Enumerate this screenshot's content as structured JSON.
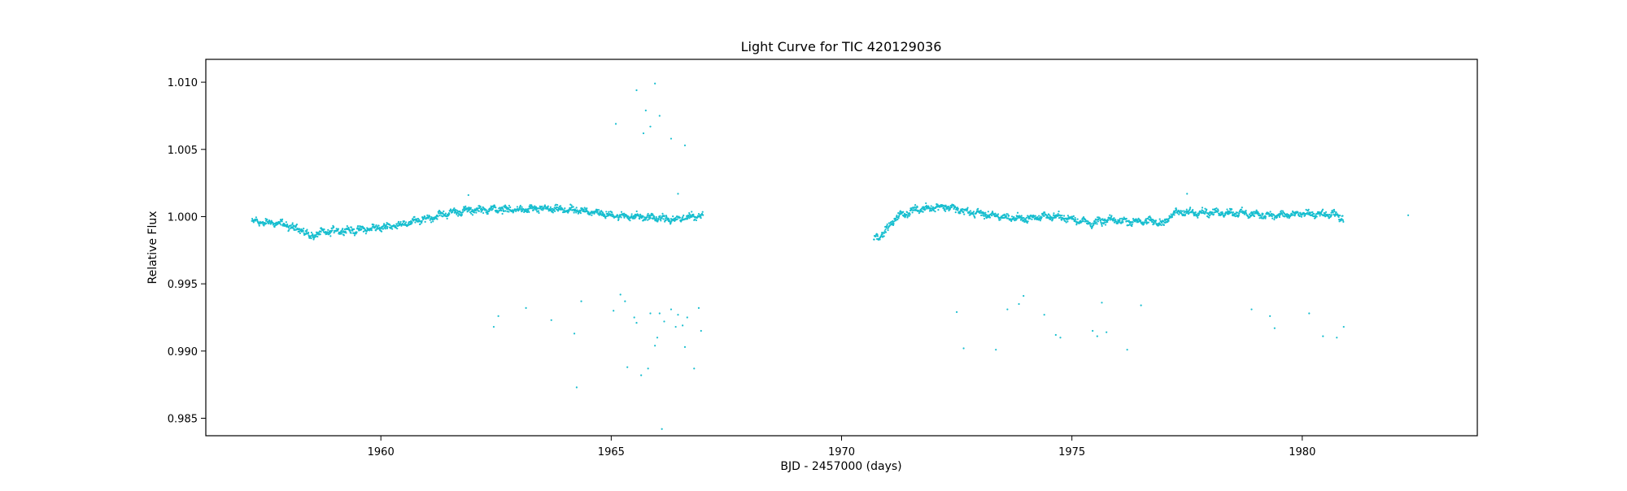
{
  "chart_data": {
    "type": "scatter",
    "title": "Light Curve for TIC 420129036",
    "xlabel": "BJD - 2457000 (days)",
    "ylabel": "Relative Flux",
    "xlim": [
      1956.2,
      1983.8
    ],
    "ylim": [
      0.9837,
      1.0117
    ],
    "x_ticks": [
      1960,
      1965,
      1970,
      1975,
      1980
    ],
    "y_ticks": [
      0.985,
      0.99,
      0.995,
      1.0,
      1.005,
      1.01
    ],
    "x_tick_labels": [
      "1960",
      "1965",
      "1970",
      "1975",
      "1980"
    ],
    "y_tick_labels": [
      "0.985",
      "0.990",
      "0.995",
      "1.000",
      "1.005",
      "1.010"
    ],
    "grid": false,
    "legend": "none",
    "series": [
      {
        "color": "#17becf",
        "trend": [
          [
            1957.2,
            0.99965
          ],
          [
            1957.5,
            0.99955
          ],
          [
            1957.8,
            0.9995
          ],
          [
            1958.1,
            0.9992
          ],
          [
            1958.3,
            0.999
          ],
          [
            1958.45,
            0.9985
          ],
          [
            1958.7,
            0.9988
          ],
          [
            1959.0,
            0.99895
          ],
          [
            1959.5,
            0.999
          ],
          [
            1960.0,
            0.9992
          ],
          [
            1960.5,
            0.99945
          ],
          [
            1961.0,
            0.99985
          ],
          [
            1961.5,
            1.0003
          ],
          [
            1962.0,
            1.0005
          ],
          [
            1962.5,
            1.00055
          ],
          [
            1963.0,
            1.0005
          ],
          [
            1963.5,
            1.0006
          ],
          [
            1964.0,
            1.0005
          ],
          [
            1964.5,
            1.0004
          ],
          [
            1965.0,
            1.0001
          ],
          [
            1965.5,
            1.0
          ],
          [
            1966.0,
            0.9999
          ],
          [
            1966.4,
            0.99975
          ],
          [
            1966.7,
            1.0
          ],
          [
            1967.0,
            1.0001
          ],
          null,
          [
            1970.7,
            0.9984
          ],
          [
            1970.9,
            0.9987
          ],
          [
            1971.2,
            1.0
          ],
          [
            1971.6,
            1.0005
          ],
          [
            1972.0,
            1.0007
          ],
          [
            1972.3,
            1.00075
          ],
          [
            1972.7,
            1.00035
          ],
          [
            1973.0,
            1.00025
          ],
          [
            1973.5,
            0.99995
          ],
          [
            1974.0,
            0.99985
          ],
          [
            1974.5,
            1.00005
          ],
          [
            1975.0,
            0.99985
          ],
          [
            1975.4,
            0.9995
          ],
          [
            1975.8,
            0.99975
          ],
          [
            1976.2,
            0.99965
          ],
          [
            1976.7,
            0.99965
          ],
          [
            1977.0,
            0.9995
          ],
          [
            1977.2,
            1.00025
          ],
          [
            1977.6,
            1.00035
          ],
          [
            1978.0,
            1.0003
          ],
          [
            1978.5,
            1.0003
          ],
          [
            1979.0,
            1.00015
          ],
          [
            1979.5,
            1.0001
          ],
          [
            1980.0,
            1.0002
          ],
          [
            1980.4,
            1.00015
          ],
          [
            1980.7,
            1.00015
          ],
          [
            1980.9,
            0.99985
          ]
        ],
        "outliers": [
          [
            1965.1,
            1.0069
          ],
          [
            1965.55,
            1.0094
          ],
          [
            1965.7,
            1.0062
          ],
          [
            1965.75,
            1.0079
          ],
          [
            1965.85,
            1.0067
          ],
          [
            1965.95,
            1.0099
          ],
          [
            1966.05,
            1.0075
          ],
          [
            1966.3,
            1.0058
          ],
          [
            1966.6,
            1.0053
          ],
          [
            1966.45,
            1.0017
          ],
          [
            1961.9,
            1.0016
          ],
          [
            1977.5,
            1.0017
          ],
          [
            1982.3,
            1.0001
          ],
          [
            1962.45,
            0.9918
          ],
          [
            1962.55,
            0.9926
          ],
          [
            1963.15,
            0.9932
          ],
          [
            1963.7,
            0.9923
          ],
          [
            1964.2,
            0.9913
          ],
          [
            1964.25,
            0.9873
          ],
          [
            1964.35,
            0.9937
          ],
          [
            1965.05,
            0.993
          ],
          [
            1965.2,
            0.9942
          ],
          [
            1965.3,
            0.9937
          ],
          [
            1965.35,
            0.9888
          ],
          [
            1965.5,
            0.9925
          ],
          [
            1965.55,
            0.9921
          ],
          [
            1965.65,
            0.9882
          ],
          [
            1965.8,
            0.9887
          ],
          [
            1965.85,
            0.9928
          ],
          [
            1965.95,
            0.9904
          ],
          [
            1966.0,
            0.991
          ],
          [
            1966.05,
            0.9928
          ],
          [
            1966.1,
            0.9842
          ],
          [
            1966.15,
            0.9922
          ],
          [
            1966.3,
            0.9931
          ],
          [
            1966.4,
            0.9918
          ],
          [
            1966.45,
            0.9927
          ],
          [
            1966.55,
            0.9919
          ],
          [
            1966.6,
            0.9903
          ],
          [
            1966.65,
            0.9925
          ],
          [
            1966.8,
            0.9887
          ],
          [
            1966.9,
            0.9932
          ],
          [
            1966.95,
            0.9915
          ],
          [
            1972.5,
            0.9929
          ],
          [
            1972.65,
            0.9902
          ],
          [
            1973.35,
            0.9901
          ],
          [
            1973.6,
            0.9931
          ],
          [
            1973.85,
            0.9935
          ],
          [
            1973.95,
            0.9941
          ],
          [
            1974.4,
            0.9927
          ],
          [
            1974.65,
            0.9912
          ],
          [
            1974.75,
            0.991
          ],
          [
            1975.45,
            0.9915
          ],
          [
            1975.55,
            0.9911
          ],
          [
            1975.65,
            0.9936
          ],
          [
            1975.75,
            0.9914
          ],
          [
            1976.2,
            0.9901
          ],
          [
            1976.5,
            0.9934
          ],
          [
            1978.9,
            0.9931
          ],
          [
            1979.3,
            0.9926
          ],
          [
            1979.4,
            0.9917
          ],
          [
            1980.15,
            0.9928
          ],
          [
            1980.45,
            0.9911
          ],
          [
            1980.75,
            0.991
          ],
          [
            1980.9,
            0.9918
          ]
        ]
      }
    ]
  }
}
